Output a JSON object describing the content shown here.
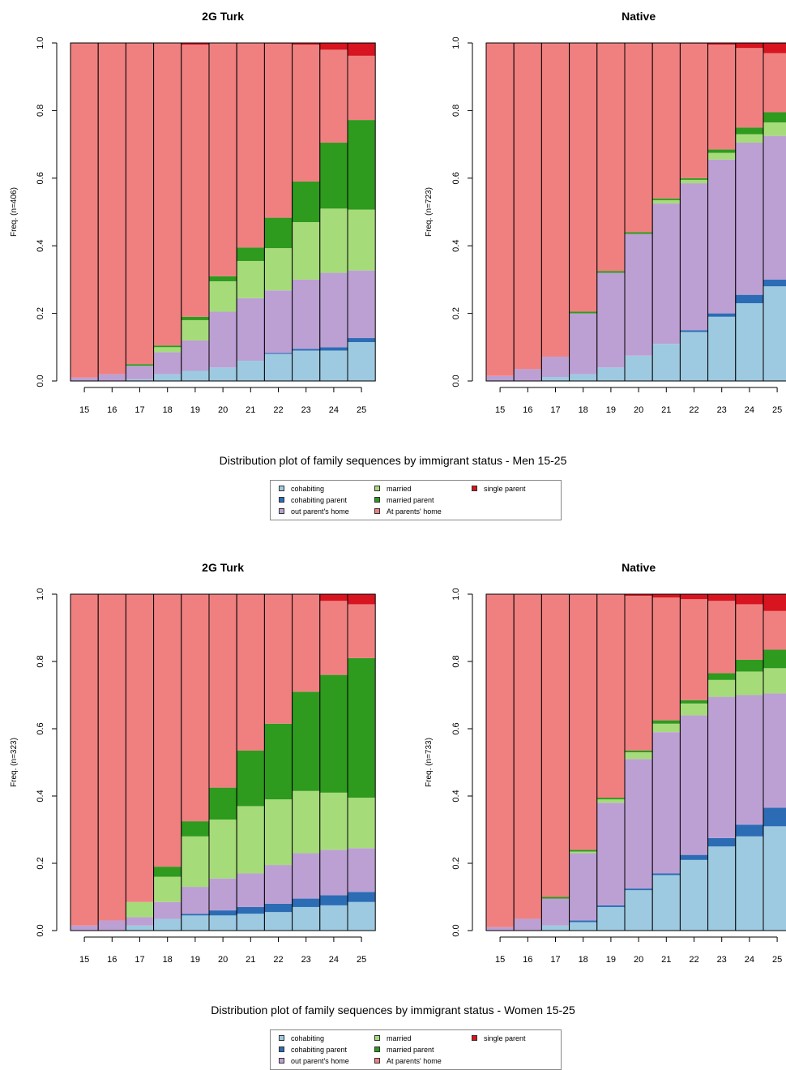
{
  "legend_items": [
    {
      "label": "cohabiting",
      "color": "#9ECAE1"
    },
    {
      "label": "cohabiting parent",
      "color": "#2B6CB5"
    },
    {
      "label": "out parent's home",
      "color": "#BCA0D4"
    },
    {
      "label": "married",
      "color": "#A6DB7A"
    },
    {
      "label": "married  parent",
      "color": "#2E9A1E"
    },
    {
      "label": "At parents' home",
      "color": "#F08080"
    },
    {
      "label": "single parent",
      "color": "#D7141F"
    }
  ],
  "figures": [
    {
      "caption": "Distribution plot of family sequences by immigrant status - Men 15-25"
    },
    {
      "caption": "Distribution plot of family sequences by immigrant status - Women 15-25"
    }
  ],
  "chart_data": [
    {
      "type": "bar",
      "stacked": true,
      "title": "2G Turk",
      "ylabel": "Freq. (n=406)",
      "categories": [
        "15",
        "16",
        "17",
        "18",
        "19",
        "20",
        "21",
        "22",
        "23",
        "24",
        "25"
      ],
      "ylim": [
        0,
        1
      ],
      "yticks": [
        "0.0",
        "0.2",
        "0.4",
        "0.6",
        "0.8",
        "1.0"
      ],
      "legend": "bottom",
      "series": [
        {
          "name": "cohabiting",
          "values": [
            0.0,
            0.0,
            0.005,
            0.02,
            0.03,
            0.04,
            0.06,
            0.08,
            0.09,
            0.09,
            0.115
          ]
        },
        {
          "name": "cohabiting parent",
          "values": [
            0.0,
            0.0,
            0.0,
            0.0,
            0.0,
            0.0,
            0.0,
            0.003,
            0.005,
            0.01,
            0.012
          ]
        },
        {
          "name": "out parent's home",
          "values": [
            0.01,
            0.02,
            0.04,
            0.065,
            0.09,
            0.165,
            0.185,
            0.185,
            0.205,
            0.22,
            0.2
          ]
        },
        {
          "name": "married",
          "values": [
            0.0,
            0.0,
            0.0,
            0.015,
            0.06,
            0.09,
            0.11,
            0.125,
            0.17,
            0.19,
            0.18
          ]
        },
        {
          "name": "married  parent",
          "values": [
            0.0,
            0.0,
            0.005,
            0.005,
            0.01,
            0.015,
            0.04,
            0.09,
            0.12,
            0.195,
            0.265
          ]
        },
        {
          "name": "At parents' home",
          "values": [
            0.99,
            0.98,
            0.95,
            0.895,
            0.805,
            0.69,
            0.605,
            0.515,
            0.405,
            0.275,
            0.19
          ]
        },
        {
          "name": "single parent",
          "values": [
            0.0,
            0.0,
            0.0,
            0.0,
            0.005,
            0.0,
            0.0,
            0.002,
            0.005,
            0.02,
            0.038
          ]
        }
      ]
    },
    {
      "type": "bar",
      "stacked": true,
      "title": "Native",
      "ylabel": "Freq. (n=723)",
      "categories": [
        "15",
        "16",
        "17",
        "18",
        "19",
        "20",
        "21",
        "22",
        "23",
        "24",
        "25"
      ],
      "ylim": [
        0,
        1
      ],
      "yticks": [
        "0.0",
        "0.2",
        "0.4",
        "0.6",
        "0.8",
        "1.0"
      ],
      "legend": "bottom",
      "series": [
        {
          "name": "cohabiting",
          "values": [
            0.0,
            0.0,
            0.012,
            0.02,
            0.04,
            0.075,
            0.11,
            0.145,
            0.19,
            0.23,
            0.28
          ]
        },
        {
          "name": "cohabiting parent",
          "values": [
            0.0,
            0.0,
            0.0,
            0.0,
            0.0,
            0.0,
            0.0,
            0.005,
            0.01,
            0.025,
            0.02
          ]
        },
        {
          "name": "out parent's home",
          "values": [
            0.015,
            0.035,
            0.06,
            0.18,
            0.28,
            0.36,
            0.415,
            0.435,
            0.455,
            0.45,
            0.425
          ]
        },
        {
          "name": "married",
          "values": [
            0.0,
            0.0,
            0.0,
            0.0,
            0.0,
            0.0,
            0.01,
            0.01,
            0.02,
            0.025,
            0.04
          ]
        },
        {
          "name": "married  parent",
          "values": [
            0.0,
            0.0,
            0.0,
            0.005,
            0.005,
            0.005,
            0.005,
            0.005,
            0.01,
            0.02,
            0.03
          ]
        },
        {
          "name": "At parents' home",
          "values": [
            0.985,
            0.965,
            0.928,
            0.795,
            0.675,
            0.56,
            0.46,
            0.398,
            0.31,
            0.235,
            0.175
          ]
        },
        {
          "name": "single parent",
          "values": [
            0.0,
            0.0,
            0.0,
            0.0,
            0.0,
            0.0,
            0.0,
            0.002,
            0.005,
            0.015,
            0.03
          ]
        }
      ]
    },
    {
      "type": "bar",
      "stacked": true,
      "title": "2G Turk",
      "ylabel": "Freq. (n=323)",
      "categories": [
        "15",
        "16",
        "17",
        "18",
        "19",
        "20",
        "21",
        "22",
        "23",
        "24",
        "25"
      ],
      "ylim": [
        0,
        1
      ],
      "yticks": [
        "0.0",
        "0.2",
        "0.4",
        "0.6",
        "0.8",
        "1.0"
      ],
      "legend": "bottom",
      "series": [
        {
          "name": "cohabiting",
          "values": [
            0.0,
            0.0,
            0.015,
            0.035,
            0.045,
            0.045,
            0.05,
            0.055,
            0.07,
            0.075,
            0.085
          ]
        },
        {
          "name": "cohabiting parent",
          "values": [
            0.0,
            0.0,
            0.0,
            0.0,
            0.005,
            0.015,
            0.02,
            0.025,
            0.025,
            0.03,
            0.03
          ]
        },
        {
          "name": "out parent's home",
          "values": [
            0.015,
            0.03,
            0.025,
            0.05,
            0.08,
            0.095,
            0.1,
            0.115,
            0.135,
            0.135,
            0.13
          ]
        },
        {
          "name": "married",
          "values": [
            0.0,
            0.0,
            0.045,
            0.075,
            0.15,
            0.175,
            0.2,
            0.195,
            0.185,
            0.17,
            0.15
          ]
        },
        {
          "name": "married  parent",
          "values": [
            0.0,
            0.0,
            0.0,
            0.03,
            0.045,
            0.095,
            0.165,
            0.225,
            0.295,
            0.35,
            0.415
          ]
        },
        {
          "name": "At parents' home",
          "values": [
            0.985,
            0.97,
            0.915,
            0.81,
            0.675,
            0.575,
            0.465,
            0.385,
            0.29,
            0.22,
            0.16
          ]
        },
        {
          "name": "single parent",
          "values": [
            0.0,
            0.0,
            0.0,
            0.0,
            0.0,
            0.0,
            0.0,
            0.0,
            0.0,
            0.02,
            0.03
          ]
        }
      ]
    },
    {
      "type": "bar",
      "stacked": true,
      "title": "Native",
      "ylabel": "Freq. (n=733)",
      "categories": [
        "15",
        "16",
        "17",
        "18",
        "19",
        "20",
        "21",
        "22",
        "23",
        "24",
        "25"
      ],
      "ylim": [
        0,
        1
      ],
      "yticks": [
        "0.0",
        "0.2",
        "0.4",
        "0.6",
        "0.8",
        "1.0"
      ],
      "legend": "bottom",
      "series": [
        {
          "name": "cohabiting",
          "values": [
            0.0,
            0.0,
            0.015,
            0.025,
            0.07,
            0.12,
            0.165,
            0.21,
            0.25,
            0.28,
            0.31
          ]
        },
        {
          "name": "cohabiting parent",
          "values": [
            0.0,
            0.0,
            0.0,
            0.005,
            0.005,
            0.005,
            0.005,
            0.015,
            0.025,
            0.035,
            0.055
          ]
        },
        {
          "name": "out parent's home",
          "values": [
            0.01,
            0.035,
            0.08,
            0.2,
            0.305,
            0.385,
            0.42,
            0.415,
            0.42,
            0.385,
            0.34
          ]
        },
        {
          "name": "married",
          "values": [
            0.0,
            0.0,
            0.0,
            0.005,
            0.01,
            0.02,
            0.025,
            0.035,
            0.05,
            0.07,
            0.075
          ]
        },
        {
          "name": "married  parent",
          "values": [
            0.0,
            0.0,
            0.005,
            0.005,
            0.005,
            0.005,
            0.01,
            0.01,
            0.02,
            0.035,
            0.055
          ]
        },
        {
          "name": "At parents' home",
          "values": [
            0.99,
            0.965,
            0.9,
            0.76,
            0.605,
            0.46,
            0.365,
            0.3,
            0.215,
            0.165,
            0.115
          ]
        },
        {
          "name": "single parent",
          "values": [
            0.0,
            0.0,
            0.0,
            0.0,
            0.0,
            0.005,
            0.01,
            0.015,
            0.02,
            0.03,
            0.05
          ]
        }
      ]
    }
  ]
}
